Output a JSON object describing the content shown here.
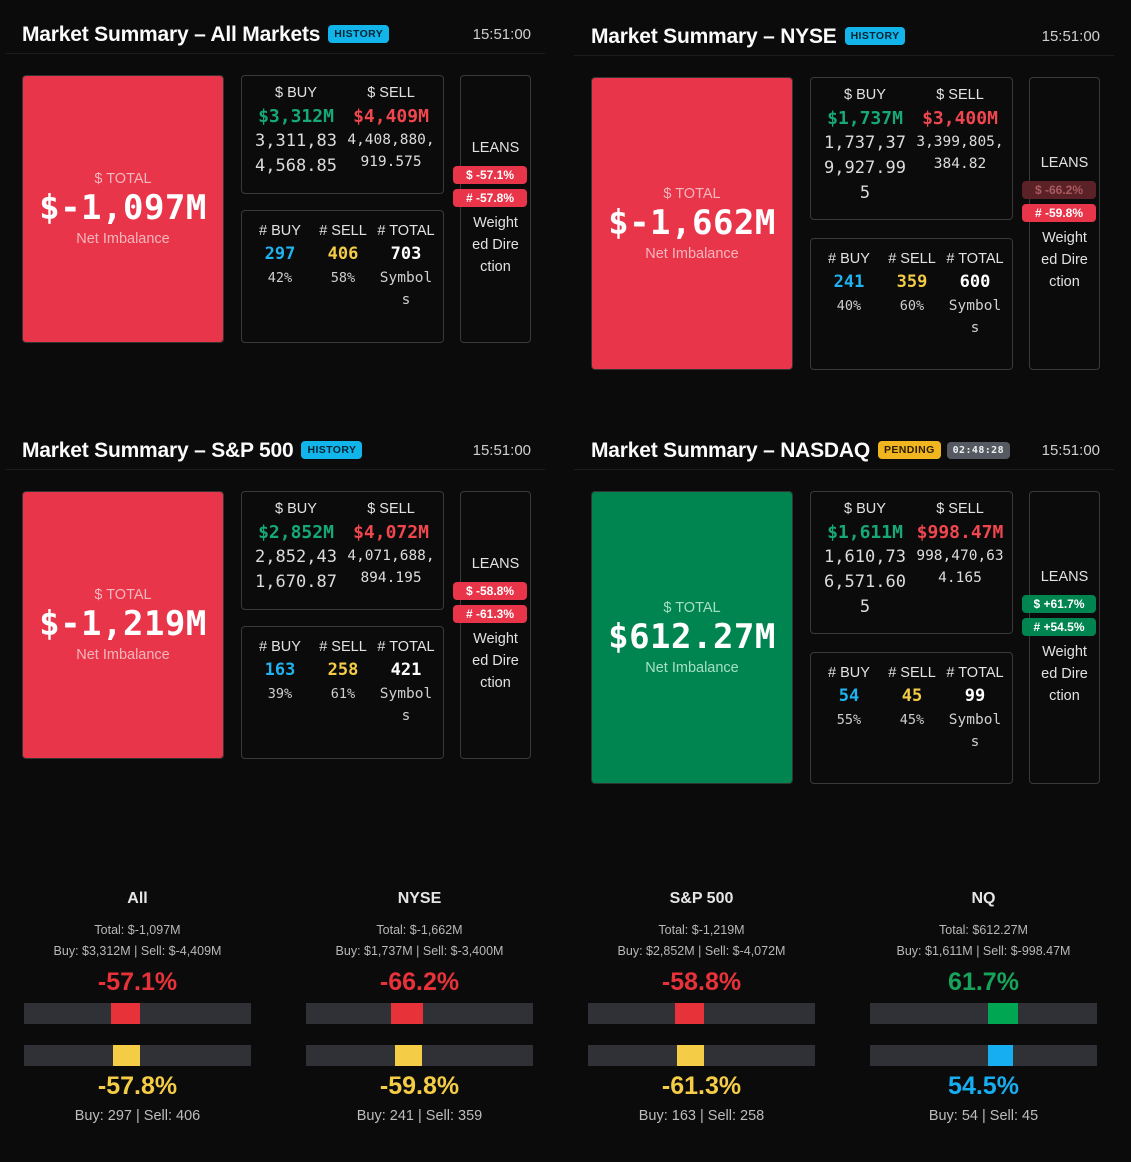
{
  "panels": {
    "all": {
      "title": "Market Summary – All Markets",
      "badge": "HISTORY",
      "time": "15:51:00",
      "total_label": "$ TOTAL",
      "total_value": "$-1,097M",
      "total_sub": "Net Imbalance",
      "buy_label": "$ BUY",
      "sell_label": "$ SELL",
      "buy_value": "$3,312M",
      "sell_value": "$4,409M",
      "buy_raw": "3,311,834,568.85",
      "sell_raw": "4,408,880,919.575",
      "cnt_buy_label": "# BUY",
      "cnt_sell_label": "# SELL",
      "cnt_total_label": "# TOTAL",
      "cnt_buy": "297",
      "cnt_sell": "406",
      "cnt_total": "703",
      "buy_pct": "42%",
      "sell_pct": "58%",
      "symbols_label": "Symbols",
      "leans_label": "LEANS",
      "lean_dollar": "$ -57.1%",
      "lean_count": "# -57.8%",
      "lean_desc": "Weighted Direction"
    },
    "nyse": {
      "title": "Market Summary – NYSE",
      "badge": "HISTORY",
      "time": "15:51:00",
      "total_label": "$ TOTAL",
      "total_value": "$-1,662M",
      "total_sub": "Net Imbalance",
      "buy_label": "$ BUY",
      "sell_label": "$ SELL",
      "buy_value": "$1,737M",
      "sell_value": "$3,400M",
      "buy_raw": "1,737,379,927.995",
      "sell_raw": "3,399,805,384.82",
      "cnt_buy_label": "# BUY",
      "cnt_sell_label": "# SELL",
      "cnt_total_label": "# TOTAL",
      "cnt_buy": "241",
      "cnt_sell": "359",
      "cnt_total": "600",
      "buy_pct": "40%",
      "sell_pct": "60%",
      "symbols_label": "Symbols",
      "leans_label": "LEANS",
      "lean_dollar": "$ -66.2%",
      "lean_count": "# -59.8%",
      "lean_desc": "Weighted Direction"
    },
    "sp500": {
      "title": "Market Summary – S&P 500",
      "badge": "HISTORY",
      "time": "15:51:00",
      "total_label": "$ TOTAL",
      "total_value": "$-1,219M",
      "total_sub": "Net Imbalance",
      "buy_label": "$ BUY",
      "sell_label": "$ SELL",
      "buy_value": "$2,852M",
      "sell_value": "$4,072M",
      "buy_raw": "2,852,431,670.87",
      "sell_raw": "4,071,688,894.195",
      "cnt_buy_label": "# BUY",
      "cnt_sell_label": "# SELL",
      "cnt_total_label": "# TOTAL",
      "cnt_buy": "163",
      "cnt_sell": "258",
      "cnt_total": "421",
      "buy_pct": "39%",
      "sell_pct": "61%",
      "symbols_label": "Symbols",
      "leans_label": "LEANS",
      "lean_dollar": "$ -58.8%",
      "lean_count": "# -61.3%",
      "lean_desc": "Weighted Direction"
    },
    "nasdaq": {
      "title": "Market Summary – NASDAQ",
      "badge": "PENDING",
      "timer": "02:48:28",
      "time": "15:51:00",
      "total_label": "$ TOTAL",
      "total_value": "$612.27M",
      "total_sub": "Net Imbalance",
      "buy_label": "$ BUY",
      "sell_label": "$ SELL",
      "buy_value": "$1,611M",
      "sell_value": "$998.47M",
      "buy_raw": "1,610,736,571.605",
      "sell_raw": "998,470,634.165",
      "cnt_buy_label": "# BUY",
      "cnt_sell_label": "# SELL",
      "cnt_total_label": "# TOTAL",
      "cnt_buy": "54",
      "cnt_sell": "45",
      "cnt_total": "99",
      "buy_pct": "55%",
      "sell_pct": "45%",
      "symbols_label": "Symbols",
      "leans_label": "LEANS",
      "lean_dollar": "$ +61.7%",
      "lean_count": "# +54.5%",
      "lean_desc": "Weighted Direction"
    }
  },
  "summary": [
    {
      "name": "All",
      "total": "Total: $-1,097M",
      "buysell": "Buy: $3,312M | Sell: $-4,409M",
      "dollar_pct": "-57.1%",
      "dollar_lean": -0.571,
      "dollar_color": "#e8323a",
      "count_pct": "-57.8%",
      "count_lean": -0.578,
      "count_color": "#f5cc46",
      "counts": "Buy: 297 | Sell: 406"
    },
    {
      "name": "NYSE",
      "total": "Total: $-1,662M",
      "buysell": "Buy: $1,737M | Sell: $-3,400M",
      "dollar_pct": "-66.2%",
      "dollar_lean": -0.662,
      "dollar_color": "#e8323a",
      "count_pct": "-59.8%",
      "count_lean": -0.598,
      "count_color": "#f5cc46",
      "counts": "Buy: 241 | Sell: 359"
    },
    {
      "name": "S&P 500",
      "total": "Total: $-1,219M",
      "buysell": "Buy: $2,852M | Sell: $-4,072M",
      "dollar_pct": "-58.8%",
      "dollar_lean": -0.588,
      "dollar_color": "#e8323a",
      "count_pct": "-61.3%",
      "count_lean": -0.613,
      "count_color": "#f5cc46",
      "counts": "Buy: 163 | Sell: 258"
    },
    {
      "name": "NQ",
      "total": "Total: $612.27M",
      "buysell": "Buy: $1,611M | Sell: $-998.47M",
      "dollar_pct": "61.7%",
      "dollar_lean": 0.617,
      "dollar_color": "#00a651",
      "count_pct": "54.5%",
      "count_lean": 0.545,
      "count_color": "#16aef0",
      "counts": "Buy: 54 | Sell: 45"
    }
  ]
}
